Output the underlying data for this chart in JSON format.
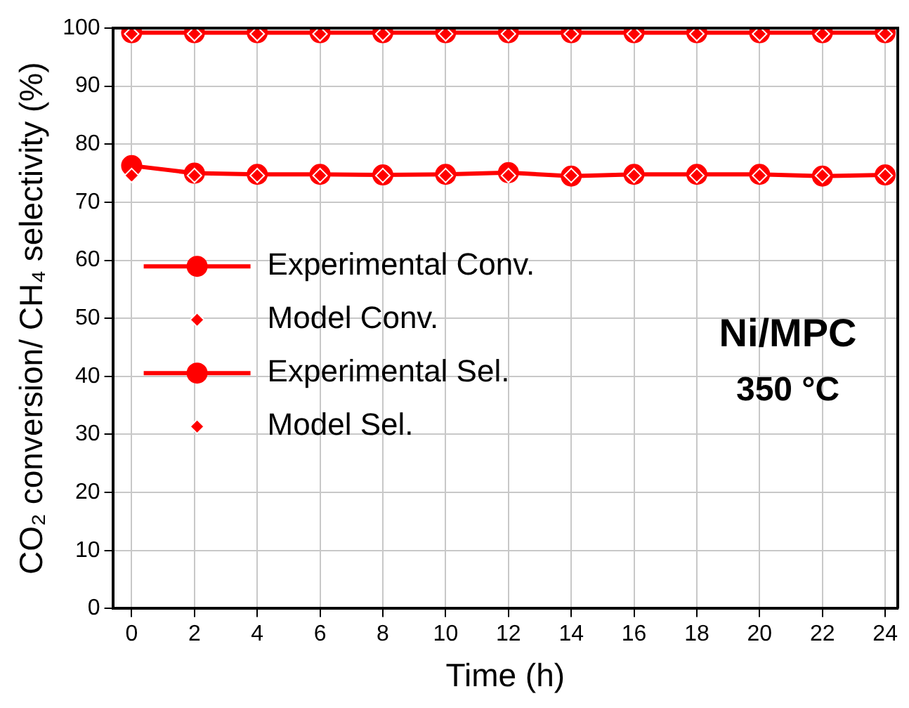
{
  "chart_data": {
    "type": "line",
    "xlabel": "Time (h)",
    "ylabel": "CO₂ conversion/ CH₄ selectivity (%)",
    "x": [
      0,
      2,
      4,
      6,
      8,
      10,
      12,
      14,
      16,
      18,
      20,
      22,
      24
    ],
    "series": [
      {
        "name": "Experimental Conv.",
        "color": "#ff0000",
        "marker": "circle",
        "values": [
          76.3,
          75.0,
          74.8,
          74.8,
          74.7,
          74.8,
          75.1,
          74.5,
          74.8,
          74.8,
          74.8,
          74.5,
          74.7
        ]
      },
      {
        "name": "Model Conv.",
        "type": "scatter",
        "color": "#ff0000",
        "marker": "diamond",
        "values": [
          74.6,
          74.6,
          74.6,
          74.6,
          74.6,
          74.6,
          74.6,
          74.6,
          74.6,
          74.6,
          74.6,
          74.6,
          74.6
        ]
      },
      {
        "name": "Experimental Sel.",
        "color": "#ff0000",
        "marker": "circle",
        "values": [
          99.2,
          99.2,
          99.2,
          99.2,
          99.2,
          99.2,
          99.2,
          99.2,
          99.2,
          99.2,
          99.2,
          99.2,
          99.2
        ]
      },
      {
        "name": "Model Sel.",
        "type": "scatter",
        "color": "#ff0000",
        "marker": "diamond",
        "values": [
          99.0,
          99.0,
          99.0,
          99.0,
          99.0,
          99.0,
          99.0,
          99.0,
          99.0,
          99.0,
          99.0,
          99.0,
          99.0
        ]
      }
    ],
    "xlim": [
      -0.6,
      24.4
    ],
    "xticks": [
      0,
      2,
      4,
      6,
      8,
      10,
      12,
      14,
      16,
      18,
      20,
      22,
      24
    ],
    "ylim": [
      0,
      100
    ],
    "yticks": [
      0,
      10,
      20,
      30,
      40,
      50,
      60,
      70,
      80,
      90,
      100
    ],
    "grid": true,
    "legend": "center left",
    "annotations": [
      "Ni/MPC",
      "350 °C"
    ]
  }
}
